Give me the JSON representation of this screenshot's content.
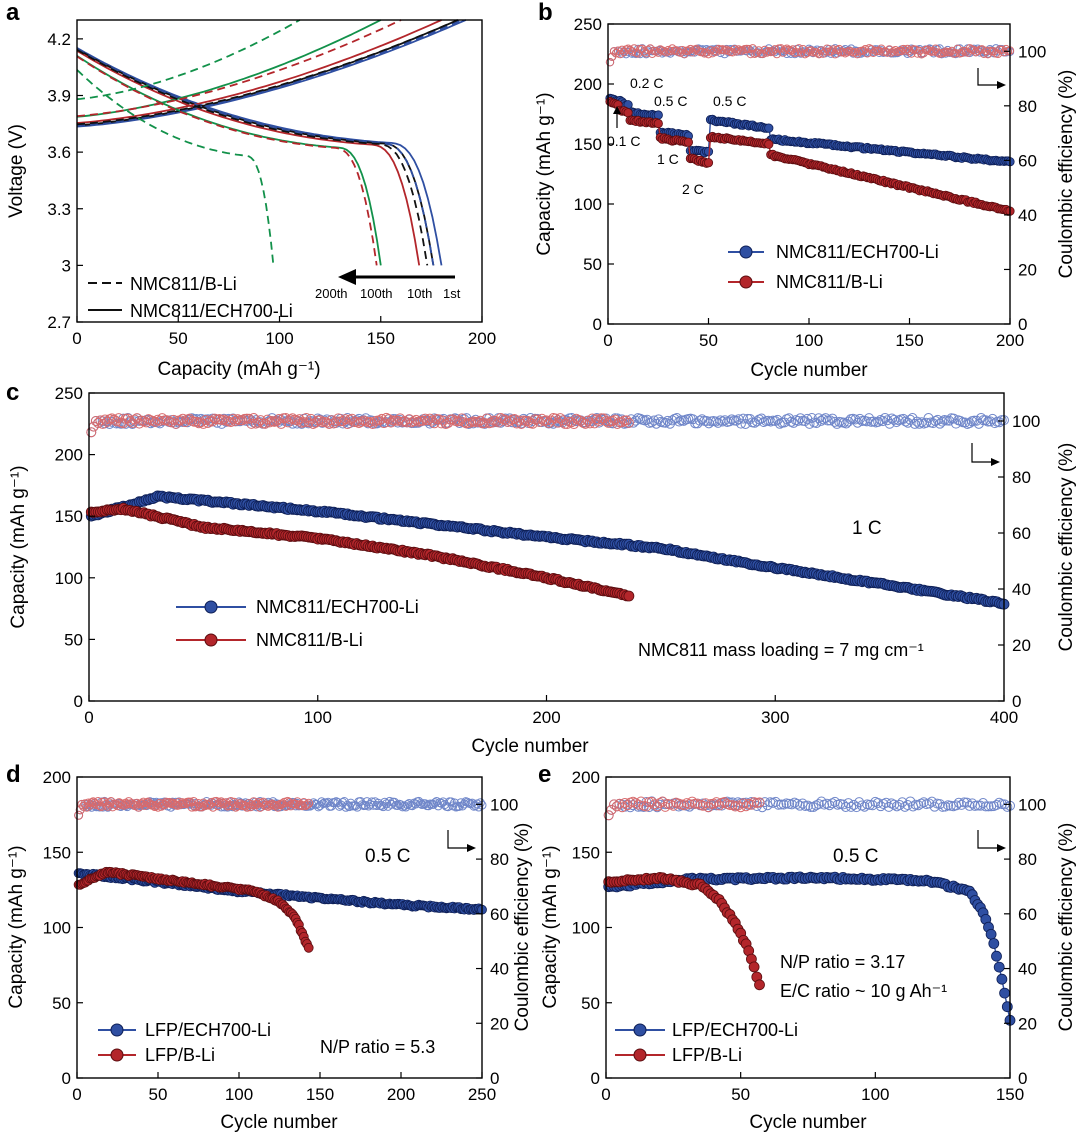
{
  "colors": {
    "blue": "#2f4fa2",
    "red": "#b3262b",
    "green": "#12914a",
    "black": "#111111"
  },
  "chart_data": [
    {
      "panel": "a",
      "type": "line",
      "xlabel": "Capacity (mAh g⁻¹)",
      "ylabel": "Voltage (V)",
      "xlim": [
        0,
        200
      ],
      "ylim": [
        2.7,
        4.3
      ],
      "xticks": [
        0,
        50,
        100,
        150,
        200
      ],
      "yticks": [
        2.7,
        3.0,
        3.3,
        3.6,
        3.9,
        4.2
      ],
      "legend": [
        {
          "label": "NMC811/B-Li",
          "style": "dashed"
        },
        {
          "label": "NMC811/ECH700-Li",
          "style": "solid"
        }
      ],
      "arrow_labels": [
        "200th",
        "100th",
        "10th",
        "1st"
      ],
      "series": [
        {
          "name": "ECH700 1st",
          "color": "blue",
          "style": "solid",
          "charge_end": 192,
          "discharge_end": 180
        },
        {
          "name": "ECH700 10th",
          "color": "black",
          "style": "solid",
          "charge_end": 188,
          "discharge_end": 176
        },
        {
          "name": "ECH700 100th",
          "color": "red",
          "style": "solid",
          "charge_end": 180,
          "discharge_end": 169
        },
        {
          "name": "ECH700 200th",
          "color": "green",
          "style": "solid",
          "charge_end": 150,
          "discharge_end": 150
        },
        {
          "name": "B-Li 1st",
          "color": "blue",
          "style": "dashed",
          "charge_end": 190,
          "discharge_end": 176
        },
        {
          "name": "B-Li 10th",
          "color": "black",
          "style": "dashed",
          "charge_end": 188,
          "discharge_end": 173
        },
        {
          "name": "B-Li 100th",
          "color": "red",
          "style": "dashed",
          "charge_end": 160,
          "discharge_end": 148
        },
        {
          "name": "B-Li 200th",
          "color": "green",
          "style": "dashed",
          "charge_end": 110,
          "discharge_end": 97
        }
      ]
    },
    {
      "panel": "b",
      "type": "scatter",
      "xlabel": "Cycle number",
      "ylabel": "Capacity (mAh g⁻¹)",
      "y2label": "Coulombic efficiency (%)",
      "xlim": [
        0,
        200
      ],
      "ylim": [
        0,
        250
      ],
      "y2lim": [
        0,
        110
      ],
      "xticks": [
        0,
        50,
        100,
        150,
        200
      ],
      "yticks": [
        0,
        50,
        100,
        150,
        200,
        250
      ],
      "y2ticks": [
        0,
        20,
        40,
        60,
        80,
        100
      ],
      "rate_labels": [
        "0.1 C",
        "0.2 C",
        "0.5 C",
        "1 C",
        "2 C",
        "0.5 C"
      ],
      "legend": [
        "NMC811/ECH700-Li",
        "NMC811/B-Li"
      ],
      "series": [
        {
          "name": "NMC811/ECH700-Li",
          "color": "blue",
          "n": 200,
          "segments": [
            [
              1,
              5,
              188,
              186
            ],
            [
              6,
              10,
              186,
              182
            ],
            [
              11,
              25,
              176,
              174
            ],
            [
              26,
              40,
              160,
              157
            ],
            [
              41,
              50,
              145,
              143
            ],
            [
              51,
              80,
              170,
              163
            ],
            [
              81,
              200,
              154,
              135
            ]
          ]
        },
        {
          "name": "NMC811/B-Li",
          "color": "red",
          "n": 200,
          "segments": [
            [
              1,
              5,
              185,
              183
            ],
            [
              6,
              10,
              178,
              176
            ],
            [
              11,
              25,
              170,
              167
            ],
            [
              26,
              40,
              155,
              151
            ],
            [
              41,
              50,
              138,
              134
            ],
            [
              51,
              80,
              156,
              150
            ],
            [
              81,
              200,
              141,
              94
            ]
          ]
        }
      ],
      "ce_level": 100
    },
    {
      "panel": "c",
      "type": "scatter",
      "xlabel": "Cycle number",
      "ylabel": "Capacity (mAh g⁻¹)",
      "y2label": "Coulombic efficiency (%)",
      "xlim": [
        0,
        400
      ],
      "ylim": [
        0,
        250
      ],
      "y2lim": [
        0,
        110
      ],
      "xticks": [
        0,
        100,
        200,
        300,
        400
      ],
      "yticks": [
        0,
        50,
        100,
        150,
        200,
        250
      ],
      "y2ticks": [
        0,
        20,
        40,
        60,
        80,
        100
      ],
      "rate_label": "1 C",
      "note": "NMC811 mass loading = 7 mg cm⁻¹",
      "legend": [
        "NMC811/ECH700-Li",
        "NMC811/B-Li"
      ],
      "series": [
        {
          "name": "NMC811/ECH700-Li",
          "color": "blue",
          "n": 400,
          "points": [
            [
              1,
              150
            ],
            [
              30,
              166
            ],
            [
              100,
              154
            ],
            [
              200,
              133
            ],
            [
              250,
              124
            ],
            [
              300,
              108
            ],
            [
              350,
              94
            ],
            [
              400,
              79
            ]
          ]
        },
        {
          "name": "NMC811/B-Li",
          "color": "red",
          "n": 236,
          "points": [
            [
              1,
              153
            ],
            [
              15,
              156
            ],
            [
              50,
              141
            ],
            [
              100,
              132
            ],
            [
              150,
              118
            ],
            [
              200,
              100
            ],
            [
              236,
              85
            ]
          ]
        }
      ],
      "ce_level": 100
    },
    {
      "panel": "d",
      "type": "scatter",
      "xlabel": "Cycle number",
      "ylabel": "Capacity (mAh g⁻¹)",
      "y2label": "Coulombic efficiency (%)",
      "xlim": [
        0,
        250
      ],
      "ylim": [
        0,
        200
      ],
      "y2lim": [
        0,
        110
      ],
      "xticks": [
        0,
        50,
        100,
        150,
        200,
        250
      ],
      "yticks": [
        0,
        50,
        100,
        150,
        200
      ],
      "y2ticks": [
        0,
        20,
        40,
        60,
        80,
        100
      ],
      "rate_label": "0.5 C",
      "note": "N/P ratio = 5.3",
      "legend": [
        "LFP/ECH700-Li",
        "LFP/B-Li"
      ],
      "series": [
        {
          "name": "LFP/ECH700-Li",
          "color": "blue",
          "n": 250,
          "points": [
            [
              1,
              136
            ],
            [
              100,
              124
            ],
            [
              200,
              115
            ],
            [
              250,
              112
            ]
          ]
        },
        {
          "name": "LFP/B-Li",
          "color": "red",
          "n": 143,
          "points": [
            [
              1,
              128
            ],
            [
              18,
              137
            ],
            [
              60,
              131
            ],
            [
              110,
              124
            ],
            [
              125,
              117
            ],
            [
              135,
              106
            ],
            [
              143,
              86
            ]
          ]
        }
      ],
      "ce_level": 100
    },
    {
      "panel": "e",
      "type": "scatter",
      "xlabel": "Cycle number",
      "ylabel": "Capacity (mAh g⁻¹)",
      "y2label": "Coulombic efficiency (%)",
      "xlim": [
        0,
        150
      ],
      "ylim": [
        0,
        200
      ],
      "y2lim": [
        0,
        110
      ],
      "xticks": [
        0,
        50,
        100,
        150
      ],
      "yticks": [
        0,
        50,
        100,
        150,
        200
      ],
      "y2ticks": [
        0,
        20,
        40,
        60,
        80,
        100
      ],
      "rate_label": "0.5 C",
      "notes": [
        "N/P ratio = 3.17",
        "E/C ratio ~ 10 g Ah⁻¹"
      ],
      "legend": [
        "LFP/ECH700-Li",
        "LFP/B-Li"
      ],
      "series": [
        {
          "name": "LFP/ECH700-Li",
          "color": "blue",
          "n": 150,
          "points": [
            [
              1,
              127
            ],
            [
              30,
              132
            ],
            [
              80,
              133
            ],
            [
              120,
              131
            ],
            [
              135,
              124
            ],
            [
              140,
              110
            ],
            [
              144,
              90
            ],
            [
              147,
              65
            ],
            [
              150,
              38
            ]
          ]
        },
        {
          "name": "LFP/B-Li",
          "color": "red",
          "n": 57,
          "points": [
            [
              1,
              130
            ],
            [
              20,
              133
            ],
            [
              35,
              128
            ],
            [
              42,
              118
            ],
            [
              48,
              103
            ],
            [
              53,
              85
            ],
            [
              57,
              62
            ]
          ]
        }
      ],
      "ce_level": 100
    }
  ]
}
